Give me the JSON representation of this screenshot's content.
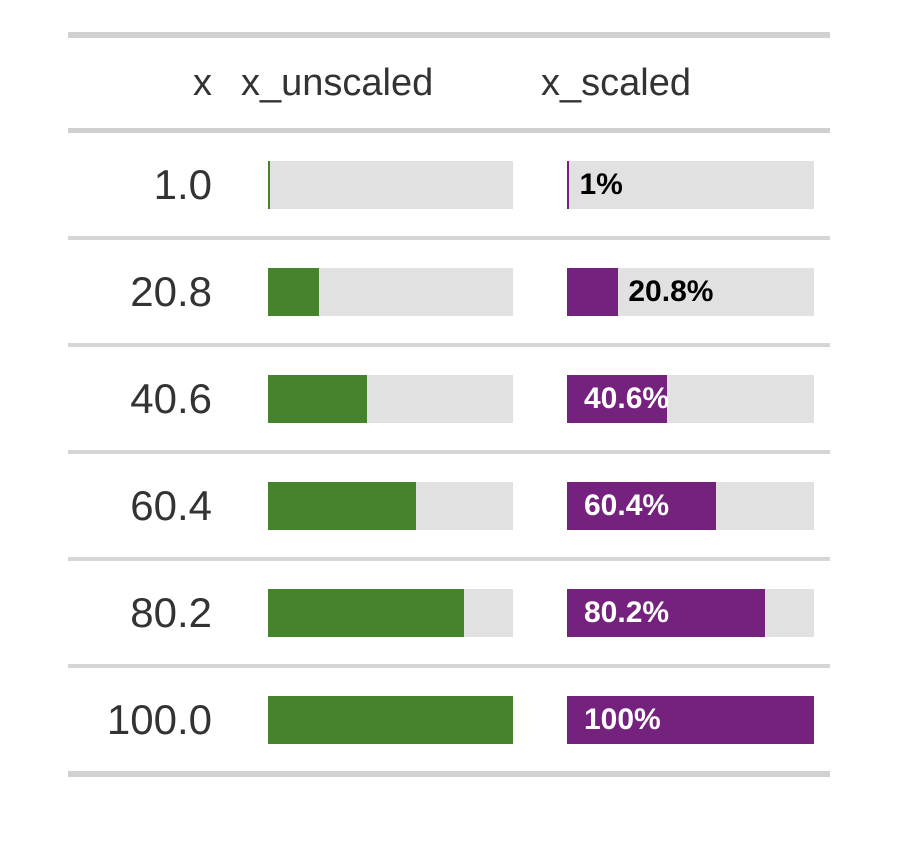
{
  "table": {
    "columns": [
      {
        "label": "x",
        "align": "right"
      },
      {
        "label": "x_unscaled",
        "align": "left"
      },
      {
        "label": "x_scaled",
        "align": "left"
      }
    ],
    "rows": [
      {
        "x": "1.0",
        "unscaled_pct": 1.0,
        "scaled_pct": 1.0,
        "scaled_label": "1%",
        "label_position": "outside"
      },
      {
        "x": "20.8",
        "unscaled_pct": 20.8,
        "scaled_pct": 20.8,
        "scaled_label": "20.8%",
        "label_position": "outside"
      },
      {
        "x": "40.6",
        "unscaled_pct": 40.6,
        "scaled_pct": 40.6,
        "scaled_label": "40.6%",
        "label_position": "inside"
      },
      {
        "x": "60.4",
        "unscaled_pct": 60.4,
        "scaled_pct": 60.4,
        "scaled_label": "60.4%",
        "label_position": "inside"
      },
      {
        "x": "80.2",
        "unscaled_pct": 80.2,
        "scaled_pct": 80.2,
        "scaled_label": "80.2%",
        "label_position": "inside"
      },
      {
        "x": "100.0",
        "unscaled_pct": 100.0,
        "scaled_pct": 100.0,
        "scaled_label": "100%",
        "label_position": "inside"
      }
    ],
    "colors": {
      "unscaled_fill": "#45832D",
      "scaled_fill": "#75217E",
      "track": "#E1E1E1",
      "label_inside": "#FFFFFF",
      "label_outside": "#000000",
      "text": "#333333"
    }
  },
  "chart_data": {
    "type": "table",
    "columns": [
      "x",
      "x_unscaled",
      "x_scaled"
    ],
    "x": [
      1.0,
      20.8,
      40.6,
      60.4,
      80.2,
      100.0
    ],
    "series": [
      {
        "name": "x_unscaled",
        "type": "bar",
        "values": [
          1.0,
          20.8,
          40.6,
          60.4,
          80.2,
          100.0
        ],
        "range": [
          0,
          100
        ],
        "fill": "#45832D",
        "labels_shown": false
      },
      {
        "name": "x_scaled",
        "type": "bar",
        "values": [
          1.0,
          20.8,
          40.6,
          60.4,
          80.2,
          100.0
        ],
        "range": [
          0,
          100
        ],
        "fill": "#75217E",
        "labels_shown": true,
        "labels": [
          "1%",
          "20.8%",
          "40.6%",
          "60.4%",
          "80.2%",
          "100%"
        ]
      }
    ],
    "title": "",
    "grid": false,
    "legend": false
  }
}
